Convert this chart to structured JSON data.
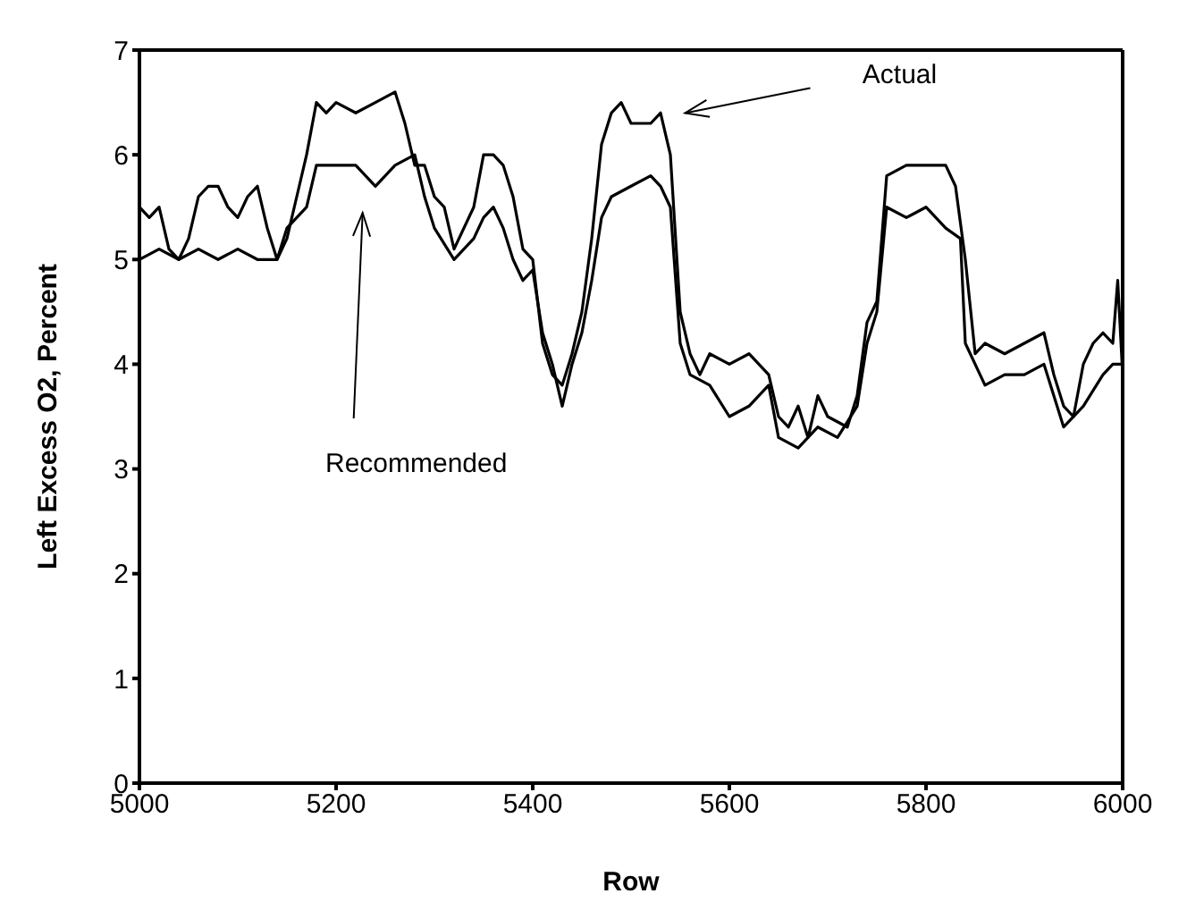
{
  "chart_data": {
    "type": "line",
    "xlabel": "Row",
    "ylabel": "Left Excess O2, Percent",
    "xlim": [
      5000,
      6000
    ],
    "xticks": [
      5000,
      5200,
      5400,
      5600,
      5800,
      6000
    ],
    "ylim": [
      0,
      7
    ],
    "yticks": [
      0,
      1,
      2,
      3,
      4,
      5,
      6,
      7
    ],
    "grid": false,
    "legend": false,
    "marker": "none",
    "line_style": "solid",
    "annotations": [
      "Actual",
      "Recommended"
    ],
    "series": [
      {
        "color": "#000000",
        "x": [
          5000,
          5010,
          5020,
          5030,
          5040,
          5050,
          5060,
          5070,
          5080,
          5090,
          5100,
          5110,
          5120,
          5130,
          5140,
          5150,
          5160,
          5170,
          5180,
          5190,
          5200,
          5220,
          5240,
          5260,
          5270,
          5280,
          5290,
          5300,
          5310,
          5320,
          5340,
          5350,
          5360,
          5370,
          5380,
          5390,
          5400,
          5410,
          5420,
          5430,
          5440,
          5450,
          5460,
          5470,
          5480,
          5490,
          5500,
          5520,
          5530,
          5540,
          5550,
          5560,
          5570,
          5580,
          5600,
          5620,
          5640,
          5650,
          5660,
          5670,
          5680,
          5690,
          5700,
          5720,
          5730,
          5740,
          5750,
          5760,
          5780,
          5800,
          5820,
          5830,
          5840,
          5850,
          5860,
          5880,
          5900,
          5920,
          5930,
          5940,
          5950,
          5960,
          5970,
          5980,
          5990,
          5995,
          6000
        ],
        "values": [
          5.5,
          5.4,
          5.5,
          5.1,
          5.0,
          5.2,
          5.6,
          5.7,
          5.7,
          5.5,
          5.4,
          5.6,
          5.7,
          5.3,
          5.0,
          5.2,
          5.6,
          6.0,
          6.5,
          6.4,
          6.5,
          6.4,
          6.5,
          6.6,
          6.3,
          5.9,
          5.9,
          5.6,
          5.5,
          5.1,
          5.5,
          6.0,
          6.0,
          5.9,
          5.6,
          5.1,
          5.0,
          4.2,
          3.9,
          3.8,
          4.1,
          4.5,
          5.2,
          6.1,
          6.4,
          6.5,
          6.3,
          6.3,
          6.4,
          6.0,
          4.5,
          4.1,
          3.9,
          4.1,
          4.0,
          4.1,
          3.9,
          3.5,
          3.4,
          3.6,
          3.3,
          3.7,
          3.5,
          3.4,
          3.7,
          4.4,
          4.6,
          5.8,
          5.9,
          5.9,
          5.9,
          5.7,
          5.0,
          4.1,
          4.2,
          4.1,
          4.2,
          4.3,
          3.9,
          3.6,
          3.5,
          4.0,
          4.2,
          4.3,
          4.2,
          4.8,
          3.9
        ]
      },
      {
        "color": "#000000",
        "x": [
          5000,
          5020,
          5040,
          5060,
          5080,
          5100,
          5120,
          5140,
          5150,
          5160,
          5170,
          5180,
          5200,
          5220,
          5240,
          5260,
          5280,
          5290,
          5300,
          5320,
          5340,
          5350,
          5360,
          5370,
          5380,
          5390,
          5400,
          5410,
          5420,
          5430,
          5440,
          5450,
          5460,
          5470,
          5480,
          5500,
          5520,
          5530,
          5540,
          5550,
          5560,
          5580,
          5600,
          5620,
          5640,
          5650,
          5670,
          5690,
          5710,
          5730,
          5740,
          5750,
          5760,
          5780,
          5800,
          5820,
          5835,
          5840,
          5860,
          5880,
          5900,
          5920,
          5940,
          5960,
          5980,
          5990,
          6000
        ],
        "values": [
          5.0,
          5.1,
          5.0,
          5.1,
          5.0,
          5.1,
          5.0,
          5.0,
          5.3,
          5.4,
          5.5,
          5.9,
          5.9,
          5.9,
          5.7,
          5.9,
          6.0,
          5.6,
          5.3,
          5.0,
          5.2,
          5.4,
          5.5,
          5.3,
          5.0,
          4.8,
          4.9,
          4.3,
          4.0,
          3.6,
          4.0,
          4.3,
          4.8,
          5.4,
          5.6,
          5.7,
          5.8,
          5.7,
          5.5,
          4.2,
          3.9,
          3.8,
          3.5,
          3.6,
          3.8,
          3.3,
          3.2,
          3.4,
          3.3,
          3.6,
          4.2,
          4.5,
          5.5,
          5.4,
          5.5,
          5.3,
          5.2,
          4.2,
          3.8,
          3.9,
          3.9,
          4.0,
          3.4,
          3.6,
          3.9,
          4.0,
          4.0
        ]
      }
    ]
  }
}
